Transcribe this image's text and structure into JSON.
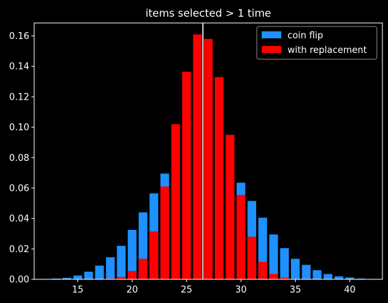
{
  "colors": {
    "background": "#000000",
    "foreground": "#ffffff",
    "coin_flip": "#1e90ff",
    "with_replacement": "#ff0000",
    "marker_line": "#ffffff"
  },
  "chart_data": {
    "type": "bar",
    "title": "items selected > 1 time",
    "xlabel": "",
    "ylabel": "",
    "xlim": [
      11,
      43
    ],
    "ylim": [
      0,
      0.1685
    ],
    "xticks": [
      15,
      20,
      25,
      30,
      35,
      40
    ],
    "yticks": [
      0.0,
      0.02,
      0.04,
      0.06,
      0.08,
      0.1,
      0.12,
      0.14,
      0.16
    ],
    "ytick_labels": [
      "0.00",
      "0.02",
      "0.04",
      "0.06",
      "0.08",
      "0.10",
      "0.12",
      "0.14",
      "0.16"
    ],
    "grid": false,
    "legend_position": "top-right",
    "bar_width": 0.8,
    "vertical_line_x": 26.5,
    "series": [
      {
        "name": "coin flip",
        "x": [
          13,
          14,
          15,
          16,
          17,
          18,
          19,
          20,
          21,
          22,
          23,
          24,
          25,
          26,
          27,
          28,
          29,
          30,
          31,
          32,
          33,
          34,
          35,
          36,
          37,
          38,
          39,
          40,
          41
        ],
        "values": [
          0.0005,
          0.001,
          0.0025,
          0.005,
          0.009,
          0.0145,
          0.022,
          0.0325,
          0.044,
          0.0565,
          0.0695,
          0.0,
          0.0,
          0.0,
          0.0,
          0.0,
          0.0,
          0.0635,
          0.0515,
          0.0405,
          0.0295,
          0.0205,
          0.0135,
          0.0095,
          0.006,
          0.0035,
          0.002,
          0.0012,
          0.0005
        ]
      },
      {
        "name": "with replacement",
        "x": [
          18,
          19,
          20,
          21,
          22,
          23,
          24,
          25,
          26,
          27,
          28,
          29,
          30,
          31,
          32,
          33,
          34
        ],
        "values": [
          0.0005,
          0.0015,
          0.0055,
          0.0135,
          0.0315,
          0.061,
          0.102,
          0.1365,
          0.161,
          0.158,
          0.133,
          0.095,
          0.0555,
          0.028,
          0.0115,
          0.0035,
          0.001
        ]
      }
    ]
  }
}
